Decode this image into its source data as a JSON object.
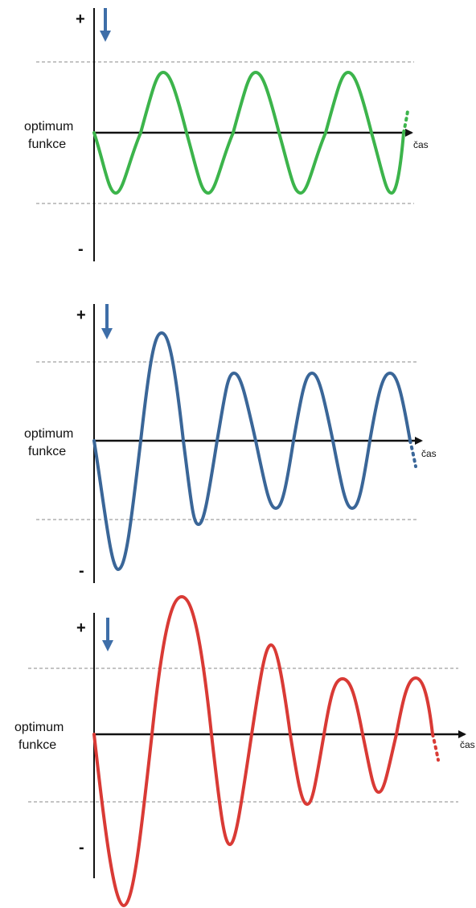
{
  "panels": [
    {
      "id": "green",
      "plus": "+",
      "minus": "-",
      "label_line1": "optimum",
      "label_line2": "funkce",
      "time_label": "čas",
      "wave_color": "#3cb44b",
      "arrow_color": "#3e6ea8"
    },
    {
      "id": "blue",
      "plus": "+",
      "minus": "-",
      "label_line1": "optimum",
      "label_line2": "funkce",
      "time_label": "čas",
      "wave_color": "#3a6698",
      "arrow_color": "#3e6ea8"
    },
    {
      "id": "red",
      "plus": "+",
      "minus": "-",
      "label_line1": "optimum",
      "label_line2": "funkce",
      "time_label": "čas",
      "wave_color": "#d93a35",
      "arrow_color": "#3e6ea8"
    }
  ]
}
